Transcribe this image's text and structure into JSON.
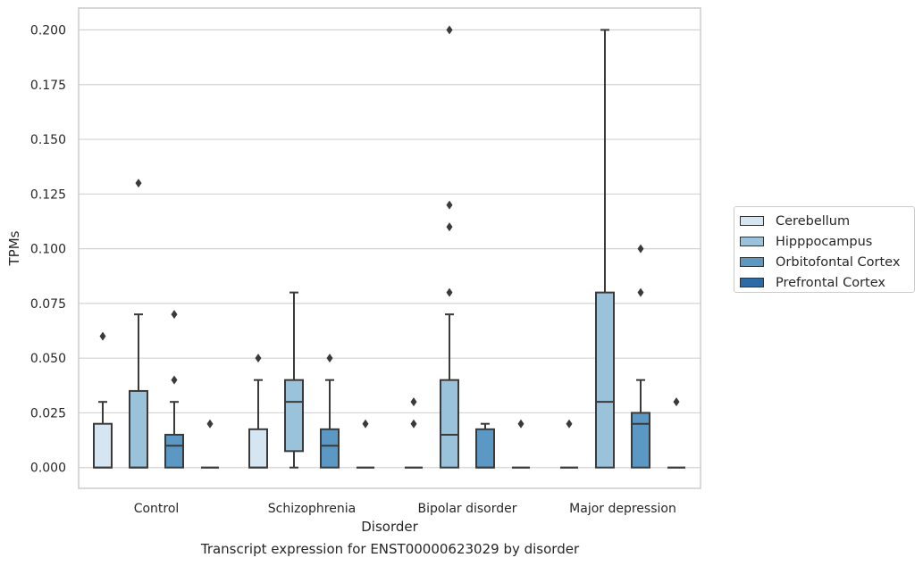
{
  "caption": "Transcript expression for ENST00000623029 by disorder",
  "chart_data": {
    "type": "box",
    "xlabel": "Disorder",
    "ylabel": "TPMs",
    "ylim": [
      -0.0095,
      0.21
    ],
    "yticks": [
      "0.000",
      "0.025",
      "0.050",
      "0.075",
      "0.100",
      "0.125",
      "0.150",
      "0.175",
      "0.200"
    ],
    "grid": "horizontal",
    "legend_position": "right",
    "categories": [
      "Control",
      "Schizophrenia",
      "Bipolar disorder",
      "Major depression"
    ],
    "series": [
      {
        "name": "Cerebellum",
        "color": "#d6e5f2",
        "boxes": [
          {
            "q1": 0.0,
            "median": 0.0,
            "q3": 0.02,
            "whisker_low": 0.0,
            "whisker_high": 0.03,
            "outliers": [
              0.06
            ]
          },
          {
            "q1": 0.0,
            "median": 0.0,
            "q3": 0.0175,
            "whisker_low": 0.0,
            "whisker_high": 0.04,
            "outliers": [
              0.05
            ]
          },
          {
            "q1": 0.0,
            "median": 0.0,
            "q3": 0.0,
            "whisker_low": 0.0,
            "whisker_high": 0.0,
            "outliers": [
              0.02,
              0.03
            ]
          },
          {
            "q1": 0.0,
            "median": 0.0,
            "q3": 0.0,
            "whisker_low": 0.0,
            "whisker_high": 0.0,
            "outliers": [
              0.02
            ]
          }
        ]
      },
      {
        "name": "Hipppocampus",
        "color": "#9ac3db",
        "boxes": [
          {
            "q1": 0.0,
            "median": 0.0,
            "q3": 0.035,
            "whisker_low": 0.0,
            "whisker_high": 0.07,
            "outliers": [
              0.13
            ]
          },
          {
            "q1": 0.0075,
            "median": 0.03,
            "q3": 0.04,
            "whisker_low": 0.0,
            "whisker_high": 0.08,
            "outliers": []
          },
          {
            "q1": 0.0,
            "median": 0.015,
            "q3": 0.04,
            "whisker_low": 0.0,
            "whisker_high": 0.07,
            "outliers": [
              0.11,
              0.12,
              0.08,
              0.2
            ]
          },
          {
            "q1": 0.0,
            "median": 0.03,
            "q3": 0.08,
            "whisker_low": 0.0,
            "whisker_high": 0.2,
            "outliers": []
          }
        ]
      },
      {
        "name": "Orbitofontal Cortex",
        "color": "#5b98c3",
        "boxes": [
          {
            "q1": 0.0,
            "median": 0.01,
            "q3": 0.015,
            "whisker_low": 0.0,
            "whisker_high": 0.03,
            "outliers": [
              0.04,
              0.07
            ]
          },
          {
            "q1": 0.0,
            "median": 0.01,
            "q3": 0.0175,
            "whisker_low": 0.0,
            "whisker_high": 0.04,
            "outliers": [
              0.05
            ]
          },
          {
            "q1": 0.0,
            "median": 0.0,
            "q3": 0.0175,
            "whisker_low": 0.0,
            "whisker_high": 0.02,
            "outliers": []
          },
          {
            "q1": 0.0,
            "median": 0.02,
            "q3": 0.025,
            "whisker_low": 0.0,
            "whisker_high": 0.04,
            "outliers": [
              0.08,
              0.1
            ]
          }
        ]
      },
      {
        "name": "Prefrontal Cortex",
        "color": "#2c6ba6",
        "boxes": [
          {
            "q1": 0.0,
            "median": 0.0,
            "q3": 0.0,
            "whisker_low": 0.0,
            "whisker_high": 0.0,
            "outliers": [
              0.02
            ]
          },
          {
            "q1": 0.0,
            "median": 0.0,
            "q3": 0.0,
            "whisker_low": 0.0,
            "whisker_high": 0.0,
            "outliers": [
              0.02
            ]
          },
          {
            "q1": 0.0,
            "median": 0.0,
            "q3": 0.0,
            "whisker_low": 0.0,
            "whisker_high": 0.0,
            "outliers": [
              0.02
            ]
          },
          {
            "q1": 0.0,
            "median": 0.0,
            "q3": 0.0,
            "whisker_low": 0.0,
            "whisker_high": 0.0,
            "outliers": [
              0.03
            ]
          }
        ]
      }
    ]
  }
}
